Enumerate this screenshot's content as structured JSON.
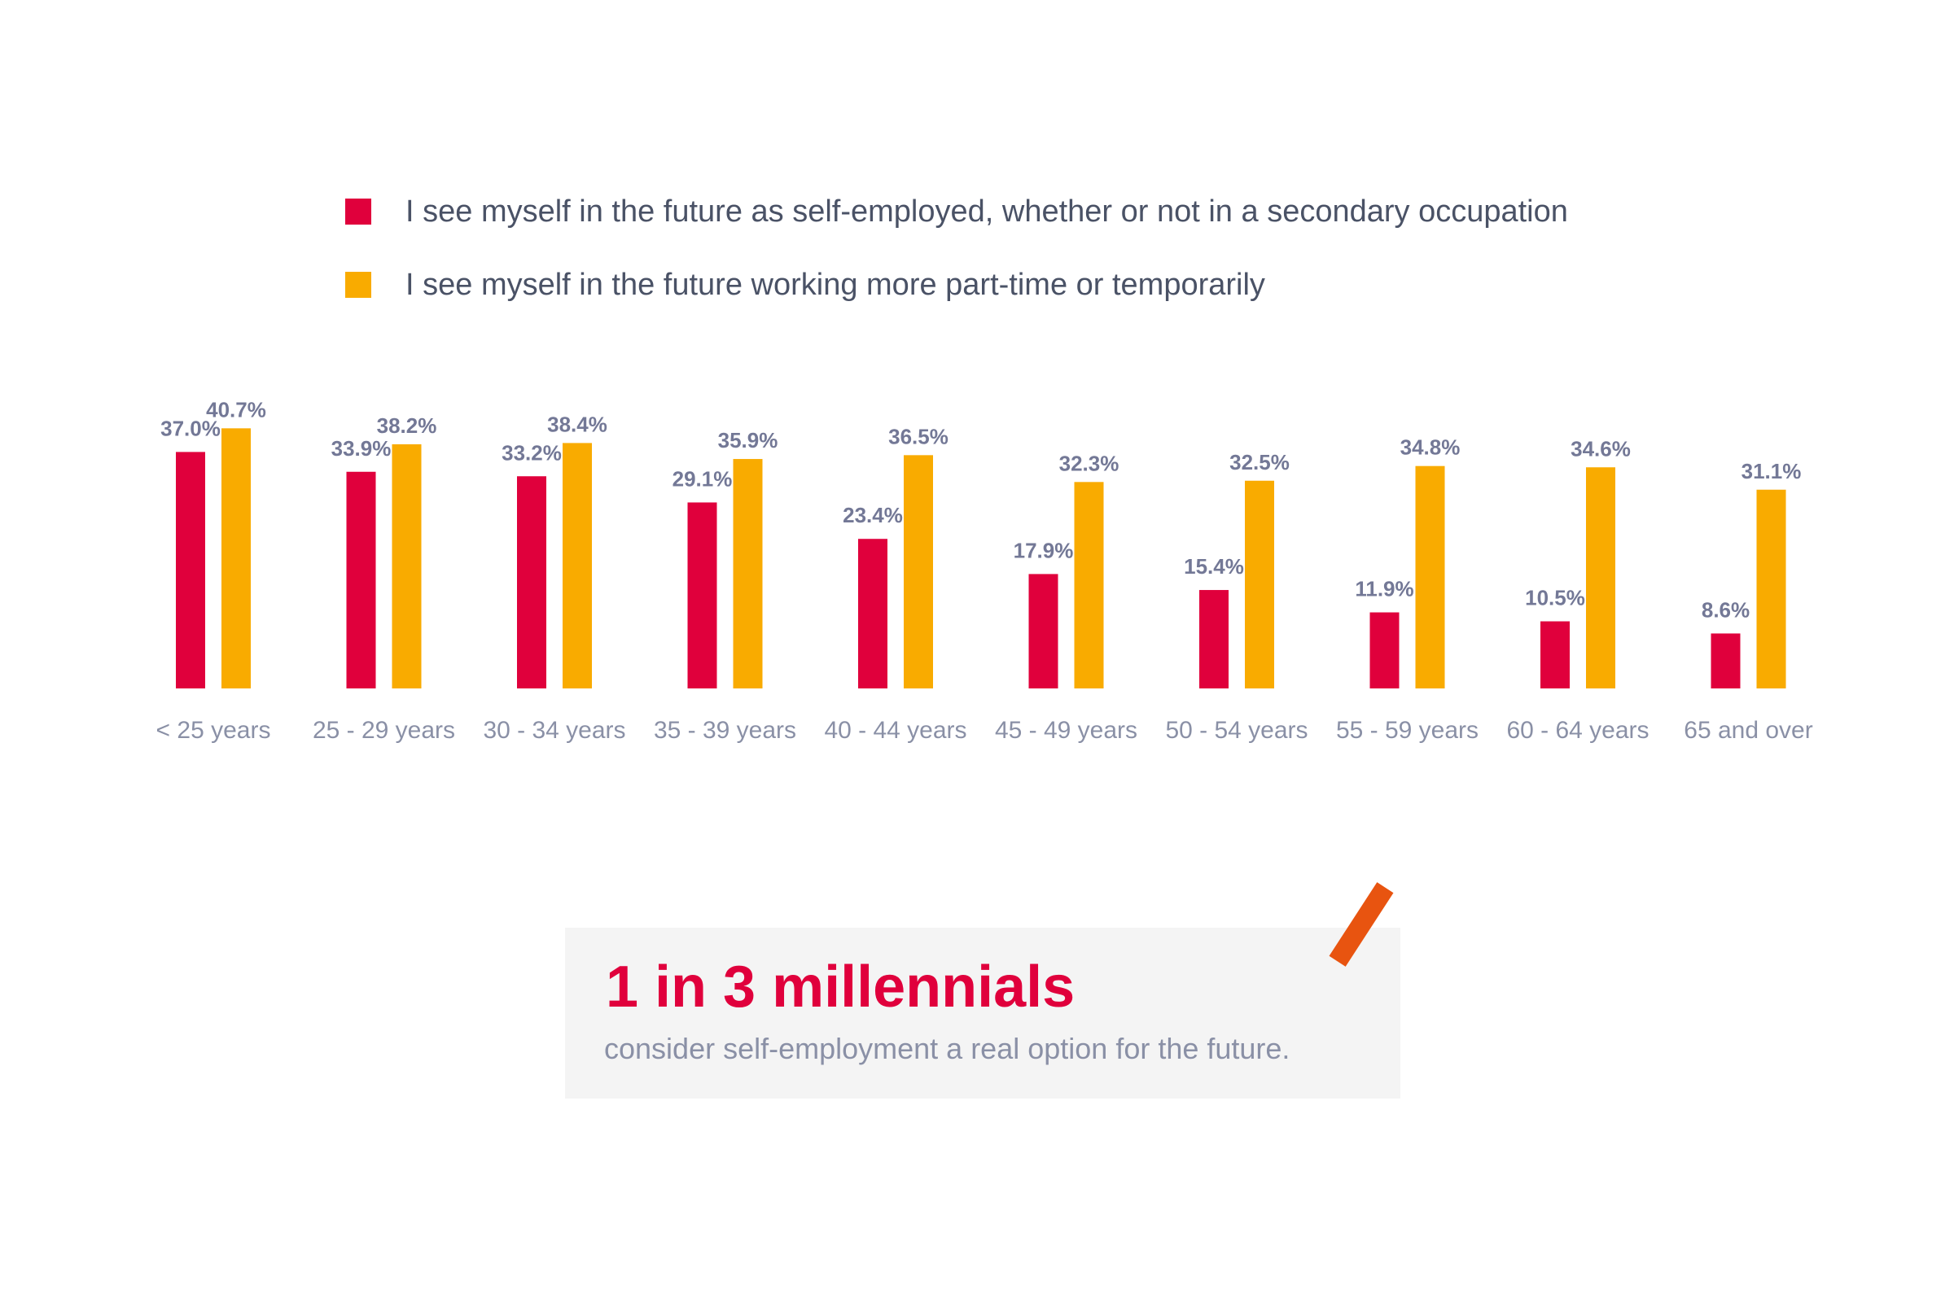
{
  "colors": {
    "series1": "#e0003c",
    "series2": "#f9ab00",
    "value_label": "#737896",
    "category_label": "#8a90a6"
  },
  "chart_data": {
    "type": "bar",
    "categories": [
      "< 25 years",
      "25 - 29 years",
      "30 - 34 years",
      "35 - 39 years",
      "40 - 44 years",
      "45 - 49 years",
      "50 - 54 years",
      "55 - 59 years",
      "60 - 64 years",
      "65 and over"
    ],
    "series": [
      {
        "name": "I see myself in the future as self-employed, whether or not in a secondary occupation",
        "values": [
          37.0,
          33.9,
          33.2,
          29.1,
          23.4,
          17.9,
          15.4,
          11.9,
          10.5,
          8.6
        ],
        "color": "#e0003c"
      },
      {
        "name": "I see myself in the future working more part-time or temporarily",
        "values": [
          40.7,
          38.2,
          38.4,
          35.9,
          36.5,
          32.3,
          32.5,
          34.8,
          34.6,
          31.1
        ],
        "color": "#f9ab00"
      }
    ],
    "value_labels": [
      [
        "37.0%",
        "33.9%",
        "33.2%",
        "29.1%",
        "23.4%",
        "17.9%",
        "15.4%",
        "11.9%",
        "10.5%",
        "8.6%"
      ],
      [
        "40.7%",
        "38.2%",
        "38.4%",
        "35.9%",
        "36.5%",
        "32.3%",
        "32.5%",
        "34.8%",
        "34.6%",
        "31.1%"
      ]
    ],
    "ylim": [
      0,
      41
    ],
    "grid": false,
    "legend_position": "top"
  },
  "callout": {
    "title": "1 in 3 millennials",
    "text": "consider self-employment a real option for the future."
  }
}
